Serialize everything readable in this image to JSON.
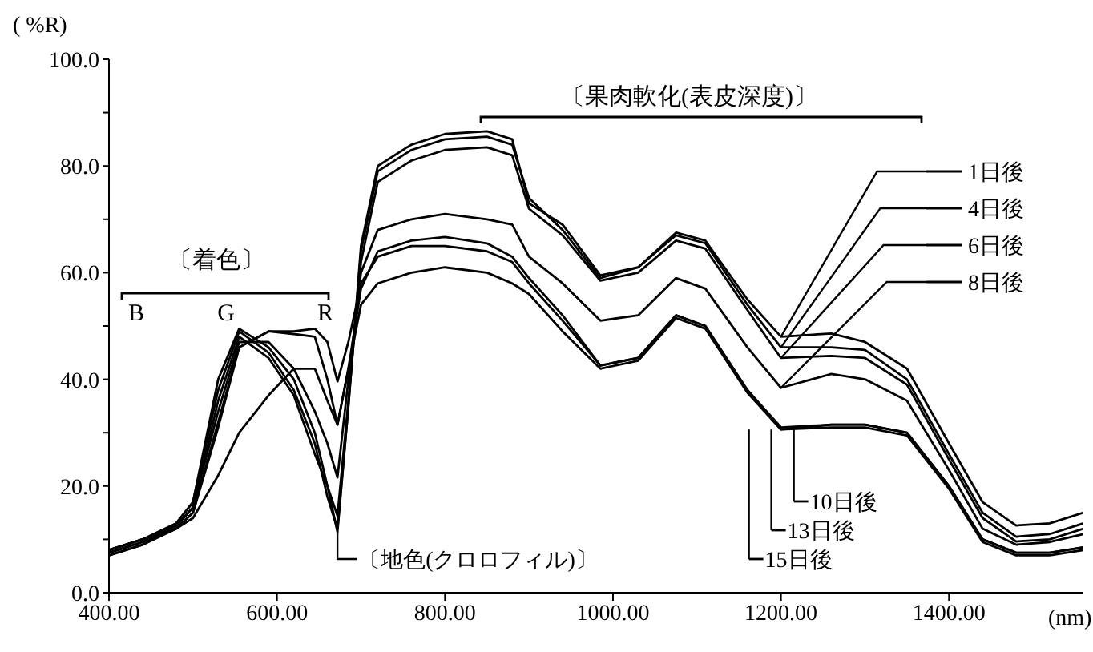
{
  "chart_data": {
    "type": "line",
    "xlabel": "(nm)",
    "ylabel": "( %R)",
    "x": [
      400,
      440,
      480,
      500,
      530,
      555,
      590,
      620,
      645,
      660,
      672,
      685,
      700,
      720,
      760,
      800,
      850,
      880,
      900,
      940,
      985,
      1030,
      1075,
      1110,
      1160,
      1200,
      1260,
      1300,
      1350,
      1400,
      1440,
      1480,
      1520,
      1560
    ],
    "series": [
      {
        "name": "1日後",
        "color": "#000000",
        "values": [
          8,
          10,
          13,
          17,
          40,
          49.5,
          46,
          40,
          30,
          20,
          11.4,
          35,
          65,
          80,
          84,
          86,
          86.5,
          85,
          73,
          69,
          59.5,
          61,
          67.5,
          66,
          55,
          48,
          48.6,
          47,
          42,
          28,
          17,
          12.6,
          13,
          15
        ]
      },
      {
        "name": "4日後",
        "color": "#000000",
        "values": [
          8,
          10,
          13,
          17,
          38,
          49,
          45,
          38,
          28,
          18,
          12,
          35,
          64,
          79,
          83,
          85,
          85.5,
          84,
          74,
          68,
          59,
          61,
          67,
          65.5,
          54,
          46,
          46,
          45.5,
          40,
          26,
          15,
          10.5,
          11,
          13
        ]
      },
      {
        "name": "6日後",
        "color": "#000000",
        "values": [
          8,
          10,
          12.5,
          16,
          36,
          48,
          44,
          37,
          26,
          20,
          14.4,
          36,
          62,
          77,
          81,
          83,
          83.5,
          82,
          72,
          67,
          58.5,
          60,
          66,
          64.5,
          53,
          44,
          44.4,
          44,
          39,
          25,
          14,
          9.6,
          10,
          12
        ]
      },
      {
        "name": "8日後",
        "color": "#000000",
        "values": [
          7.5,
          9.5,
          12.5,
          16,
          34,
          47,
          47,
          42,
          34,
          28,
          21.6,
          40,
          60,
          68,
          70,
          71,
          70,
          69,
          63,
          58,
          51,
          52,
          59,
          57,
          46,
          38.4,
          41,
          40,
          36,
          23,
          12,
          9,
          9.5,
          11
        ]
      },
      {
        "name": "10日後",
        "color": "#000000",
        "values": [
          7.5,
          9.5,
          12,
          15,
          32,
          46,
          49,
          48.5,
          48,
          40,
          31.5,
          42,
          57,
          64,
          66,
          66.7,
          65.5,
          63,
          59,
          52,
          42.6,
          44,
          52,
          50,
          38,
          31,
          31.5,
          31.5,
          30,
          20,
          10,
          7.5,
          7.5,
          8.5
        ]
      },
      {
        "name": "13日後",
        "color": "#000000",
        "values": [
          7,
          9,
          12,
          15,
          31,
          46,
          49,
          49,
          49.5,
          47,
          39.6,
          47,
          58,
          63,
          65,
          65,
          64,
          62,
          58,
          51,
          42.6,
          44,
          52,
          50,
          38,
          30.6,
          31.5,
          31.5,
          30,
          20,
          10,
          7.5,
          7.5,
          8.5
        ]
      },
      {
        "name": "15日後",
        "color": "#000000",
        "values": [
          7,
          9,
          12,
          14,
          22,
          30,
          37,
          42,
          42,
          36,
          31.5,
          42,
          54,
          58,
          60,
          61,
          60,
          58,
          56,
          49,
          42,
          43.5,
          51.5,
          49.5,
          37.5,
          30.6,
          31,
          31,
          29.5,
          19.5,
          9.5,
          7,
          7,
          8
        ]
      }
    ],
    "xlim": [
      400,
      1560
    ],
    "xticks": [
      {
        "value": 400,
        "label": "400.00"
      },
      {
        "value": 600,
        "label": "600.00"
      },
      {
        "value": 800,
        "label": "800.00"
      },
      {
        "value": 1000,
        "label": "1000.00"
      },
      {
        "value": 1200,
        "label": "1200.00"
      },
      {
        "value": 1400,
        "label": "1400.00"
      }
    ],
    "ylim": [
      0,
      100
    ],
    "yticks": [
      {
        "value": 0,
        "label": "0.0"
      },
      {
        "value": 10,
        "label": null
      },
      {
        "value": 20,
        "label": "20.0"
      },
      {
        "value": 30,
        "label": null
      },
      {
        "value": 40,
        "label": "40.0"
      },
      {
        "value": 50,
        "label": null
      },
      {
        "value": 60,
        "label": "60.0"
      },
      {
        "value": 70,
        "label": null
      },
      {
        "value": 80,
        "label": "80.0"
      },
      {
        "value": 90,
        "label": null
      },
      {
        "value": 100,
        "label": "100.0"
      }
    ],
    "annotations": [
      "〔着色〕",
      "B",
      "G",
      "R",
      "〔果肉軟化(表皮深度)〕",
      {
        "text": "〔地色(クロロフィル)〕",
        "x": 672,
        "y": 11.4
      }
    ],
    "marker": "none",
    "line_style": "solid",
    "legend": "right",
    "grid": false
  }
}
